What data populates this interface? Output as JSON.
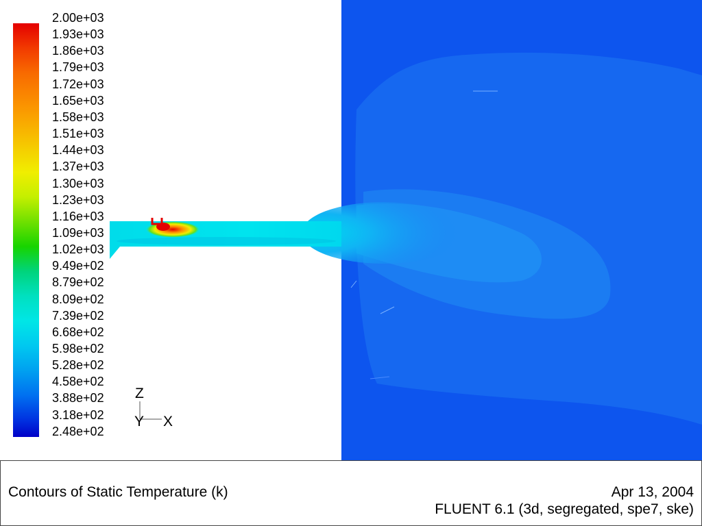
{
  "colorbar": {
    "labels": [
      "2.00e+03",
      "1.93e+03",
      "1.86e+03",
      "1.79e+03",
      "1.72e+03",
      "1.65e+03",
      "1.58e+03",
      "1.51e+03",
      "1.44e+03",
      "1.37e+03",
      "1.30e+03",
      "1.23e+03",
      "1.16e+03",
      "1.09e+03",
      "1.02e+03",
      "9.49e+02",
      "8.79e+02",
      "8.09e+02",
      "7.39e+02",
      "6.68e+02",
      "5.98e+02",
      "5.28e+02",
      "4.58e+02",
      "3.88e+02",
      "3.18e+02",
      "2.48e+02"
    ],
    "max_color": "#e40000",
    "min_color": "#0000c8"
  },
  "axes": {
    "z": "Z",
    "y": "Y",
    "x": "X"
  },
  "colors": {
    "background_field": "#0d55ee",
    "plume": "#1c8bf5",
    "duct": "#00e2ee",
    "hotspot": "#e40000"
  },
  "footer": {
    "title": "Contours of Static Temperature (k)",
    "date": "Apr 13, 2004",
    "solver": "FLUENT 6.1 (3d, segregated, spe7, ske)"
  }
}
